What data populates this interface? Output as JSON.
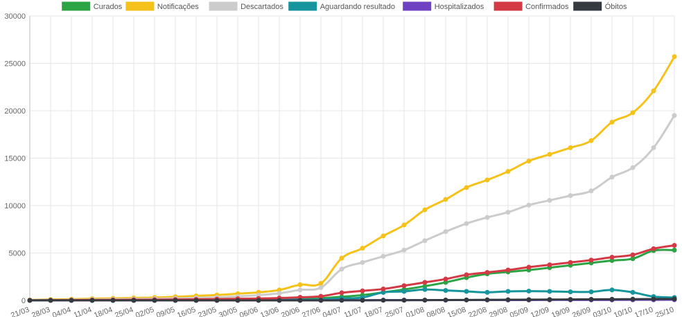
{
  "chart_data": {
    "type": "line",
    "y_ticks": [
      "0",
      "5000",
      "10000",
      "15000",
      "20000",
      "25000",
      "30000"
    ],
    "ylim": [
      0,
      30000
    ],
    "grid": true,
    "legend_position": "top",
    "categories": [
      "21/03",
      "28/03",
      "04/04",
      "11/04",
      "18/04",
      "25/04",
      "02/05",
      "09/05",
      "16/05",
      "23/05",
      "30/05",
      "06/06",
      "13/06",
      "20/06",
      "27/06",
      "04/07",
      "11/07",
      "18/07",
      "25/07",
      "01/08",
      "08/08",
      "15/08",
      "22/08",
      "29/08",
      "05/09",
      "12/09",
      "19/09",
      "26/09",
      "03/10",
      "10/10",
      "17/10",
      "25/10"
    ],
    "series": [
      {
        "name": "Curados",
        "color": "#2ca444",
        "values": [
          0,
          0,
          0,
          0,
          0,
          0,
          10,
          30,
          50,
          70,
          90,
          110,
          140,
          180,
          230,
          380,
          560,
          850,
          1150,
          1500,
          1900,
          2400,
          2800,
          3000,
          3200,
          3450,
          3700,
          3950,
          4200,
          4400,
          5250,
          5300
        ]
      },
      {
        "name": "Notificações",
        "color": "#f5c21b",
        "values": [
          50,
          90,
          130,
          180,
          220,
          260,
          300,
          380,
          470,
          570,
          700,
          850,
          1100,
          1650,
          1800,
          4450,
          5500,
          6800,
          7950,
          9550,
          10650,
          11900,
          12700,
          13600,
          14700,
          15400,
          16100,
          16850,
          18800,
          19800,
          22100,
          25700
        ]
      },
      {
        "name": "Descartados",
        "color": "#cccccc",
        "values": [
          20,
          40,
          60,
          90,
          110,
          140,
          170,
          210,
          260,
          320,
          420,
          550,
          750,
          1100,
          1350,
          3300,
          4000,
          4650,
          5300,
          6300,
          7250,
          8100,
          8750,
          9300,
          10050,
          10550,
          11050,
          11550,
          13000,
          14000,
          16100,
          19500
        ]
      },
      {
        "name": "Aguardando resultado",
        "color": "#17959c",
        "values": [
          10,
          15,
          20,
          25,
          30,
          30,
          30,
          30,
          40,
          40,
          40,
          50,
          60,
          80,
          100,
          200,
          300,
          850,
          950,
          1150,
          1050,
          950,
          850,
          950,
          980,
          950,
          900,
          900,
          1100,
          850,
          400,
          300
        ]
      },
      {
        "name": "Hospitalizados",
        "color": "#6f42c1",
        "values": [
          0,
          0,
          0,
          0,
          0,
          0,
          0,
          0,
          0,
          0,
          5,
          5,
          5,
          10,
          10,
          20,
          20,
          30,
          30,
          30,
          30,
          40,
          40,
          40,
          40,
          50,
          50,
          50,
          50,
          60,
          60,
          70
        ]
      },
      {
        "name": "Confirmados",
        "color": "#d33a46",
        "values": [
          10,
          20,
          30,
          40,
          50,
          60,
          70,
          90,
          110,
          140,
          170,
          200,
          250,
          330,
          430,
          800,
          1000,
          1200,
          1550,
          1900,
          2250,
          2700,
          2950,
          3200,
          3500,
          3750,
          4000,
          4250,
          4550,
          4800,
          5450,
          5800
        ]
      },
      {
        "name": "Óbitos",
        "color": "#343a40",
        "values": [
          0,
          0,
          0,
          0,
          0,
          0,
          0,
          0,
          0,
          0,
          0,
          0,
          0,
          0,
          1,
          5,
          10,
          15,
          20,
          30,
          40,
          50,
          60,
          70,
          80,
          90,
          100,
          110,
          120,
          130,
          140,
          150
        ]
      }
    ]
  }
}
